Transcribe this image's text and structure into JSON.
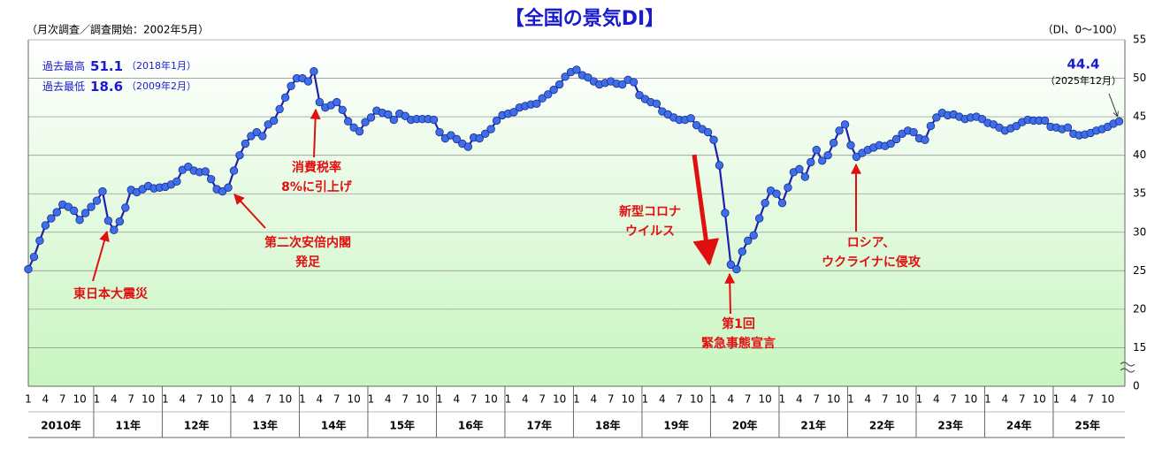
{
  "chart_data": {
    "type": "line",
    "title": "【全国の景気DI】",
    "subtitle": "（月次調査／調査開始：2002年5月）",
    "unit_note": "（DI、0～100）",
    "records": [
      {
        "label": "過去最高",
        "value": 51.1,
        "date": "（2018年1月）"
      },
      {
        "label": "過去最低",
        "value": 18.6,
        "date": "（2009年2月）"
      }
    ],
    "latest_date": "（2025年12月）",
    "annotations": [
      [
        "東日本大震災"
      ],
      [
        "第二次安倍内閣",
        "発足"
      ],
      [
        "消費税率",
        "8%に引上げ"
      ],
      [
        "新型コロナ",
        "ウイルス"
      ],
      [
        "第1回",
        "緊急事態宣言"
      ],
      [
        "ロシア、",
        "ウクライナに侵攻"
      ]
    ],
    "years": [
      "2010年",
      "11年",
      "12年",
      "13年",
      "14年",
      "15年",
      "16年",
      "17年",
      "18年",
      "19年",
      "20年",
      "21年",
      "22年",
      "23年",
      "24年",
      "25年"
    ],
    "categories": [
      "1",
      null,
      null,
      "4",
      null,
      null,
      "7",
      null,
      null,
      "10",
      null,
      null,
      "1",
      null,
      null,
      "4",
      null,
      null,
      "7",
      null,
      null,
      "10",
      null,
      null,
      "1",
      null,
      null,
      "4",
      null,
      null,
      "7",
      null,
      null,
      "10",
      null,
      null,
      "1",
      null,
      null,
      "4",
      null,
      null,
      "7",
      null,
      null,
      "10",
      null,
      null,
      "1",
      null,
      null,
      "4",
      null,
      null,
      "7",
      null,
      null,
      "10",
      null,
      null,
      "1",
      null,
      null,
      "4",
      null,
      null,
      "7",
      null,
      null,
      "10",
      null,
      null,
      "1",
      null,
      null,
      "4",
      null,
      null,
      "7",
      null,
      null,
      "10",
      null,
      null,
      "1",
      null,
      null,
      "4",
      null,
      null,
      "7",
      null,
      null,
      "10",
      null,
      null,
      "1",
      null,
      null,
      "4",
      null,
      null,
      "7",
      null,
      null,
      "10",
      null,
      null,
      "1",
      null,
      null,
      "4",
      null,
      null,
      "7",
      null,
      null,
      "10",
      null,
      null,
      "1",
      null,
      null,
      "4",
      null,
      null,
      "7",
      null,
      null,
      "10",
      null,
      null,
      "1",
      null,
      null,
      "4",
      null,
      null,
      "7",
      null,
      null,
      "10",
      null,
      null,
      "1",
      null,
      null,
      "4",
      null,
      null,
      "7",
      null,
      null,
      "10",
      null,
      null,
      "1",
      null,
      null,
      "4",
      null,
      null,
      "7",
      null,
      null,
      "10",
      null,
      null,
      "1",
      null,
      null,
      "4",
      null,
      null,
      "7",
      null,
      null,
      "10",
      null,
      null,
      "1",
      null,
      null,
      "4",
      null,
      null,
      "7",
      null,
      null,
      "10",
      null,
      null
    ],
    "values": [
      25.2,
      26.8,
      28.9,
      30.9,
      31.8,
      32.6,
      33.6,
      33.3,
      32.8,
      31.6,
      32.5,
      33.3,
      34.1,
      35.3,
      31.5,
      30.3,
      31.4,
      33.2,
      35.5,
      35.2,
      35.6,
      36.0,
      35.7,
      35.8,
      35.9,
      36.2,
      36.6,
      38.1,
      38.5,
      38.0,
      37.8,
      37.9,
      36.9,
      35.6,
      35.3,
      35.8,
      38.0,
      40.0,
      41.5,
      42.5,
      43.0,
      42.5,
      44.0,
      44.5,
      46.0,
      47.5,
      49.0,
      50.0,
      50.0,
      49.6,
      50.9,
      46.9,
      46.2,
      46.5,
      46.9,
      45.9,
      44.4,
      43.6,
      43.1,
      44.3,
      44.9,
      45.8,
      45.5,
      45.3,
      44.6,
      45.4,
      45.1,
      44.6,
      44.7,
      44.7,
      44.7,
      44.6,
      43.0,
      42.2,
      42.6,
      42.1,
      41.5,
      41.1,
      42.3,
      42.2,
      42.8,
      43.4,
      44.5,
      45.2,
      45.4,
      45.6,
      46.2,
      46.4,
      46.6,
      46.7,
      47.4,
      47.9,
      48.5,
      49.2,
      50.2,
      50.8,
      51.1,
      50.4,
      50.1,
      49.6,
      49.2,
      49.4,
      49.6,
      49.3,
      49.2,
      49.8,
      49.5,
      47.8,
      47.3,
      46.9,
      46.7,
      45.7,
      45.3,
      44.9,
      44.6,
      44.6,
      44.8,
      43.9,
      43.4,
      43.0,
      42.0,
      38.7,
      32.5,
      25.8,
      25.2,
      27.5,
      28.9,
      29.6,
      31.8,
      33.8,
      35.4,
      35.0,
      33.8,
      35.8,
      37.8,
      38.2,
      37.2,
      39.1,
      40.7,
      39.3,
      40.0,
      41.6,
      43.2,
      44.0,
      41.3,
      39.8,
      40.3,
      40.7,
      41.0,
      41.3,
      41.2,
      41.5,
      42.1,
      42.8,
      43.2,
      43.0,
      42.2,
      42.0,
      43.8,
      44.9,
      45.5,
      45.2,
      45.3,
      45.0,
      44.7,
      44.9,
      45.0,
      44.7,
      44.2,
      44.0,
      43.6,
      43.2,
      43.5,
      43.8,
      44.3,
      44.6,
      44.5,
      44.5,
      44.5,
      43.7,
      43.6,
      43.4,
      43.6,
      42.8,
      42.6,
      42.7,
      42.9,
      43.2,
      43.4,
      43.7,
      44.1,
      44.4
    ],
    "color": "#1f1fb0",
    "marker_color": "#3f6fe8",
    "annotation_color": "#e01010",
    "ylim": [
      10,
      55
    ],
    "yticks": [
      {
        "value": 10,
        "label": "0"
      },
      15,
      20,
      25,
      30,
      35,
      40,
      45,
      50,
      55
    ],
    "axis_break": true,
    "grid": true
  }
}
